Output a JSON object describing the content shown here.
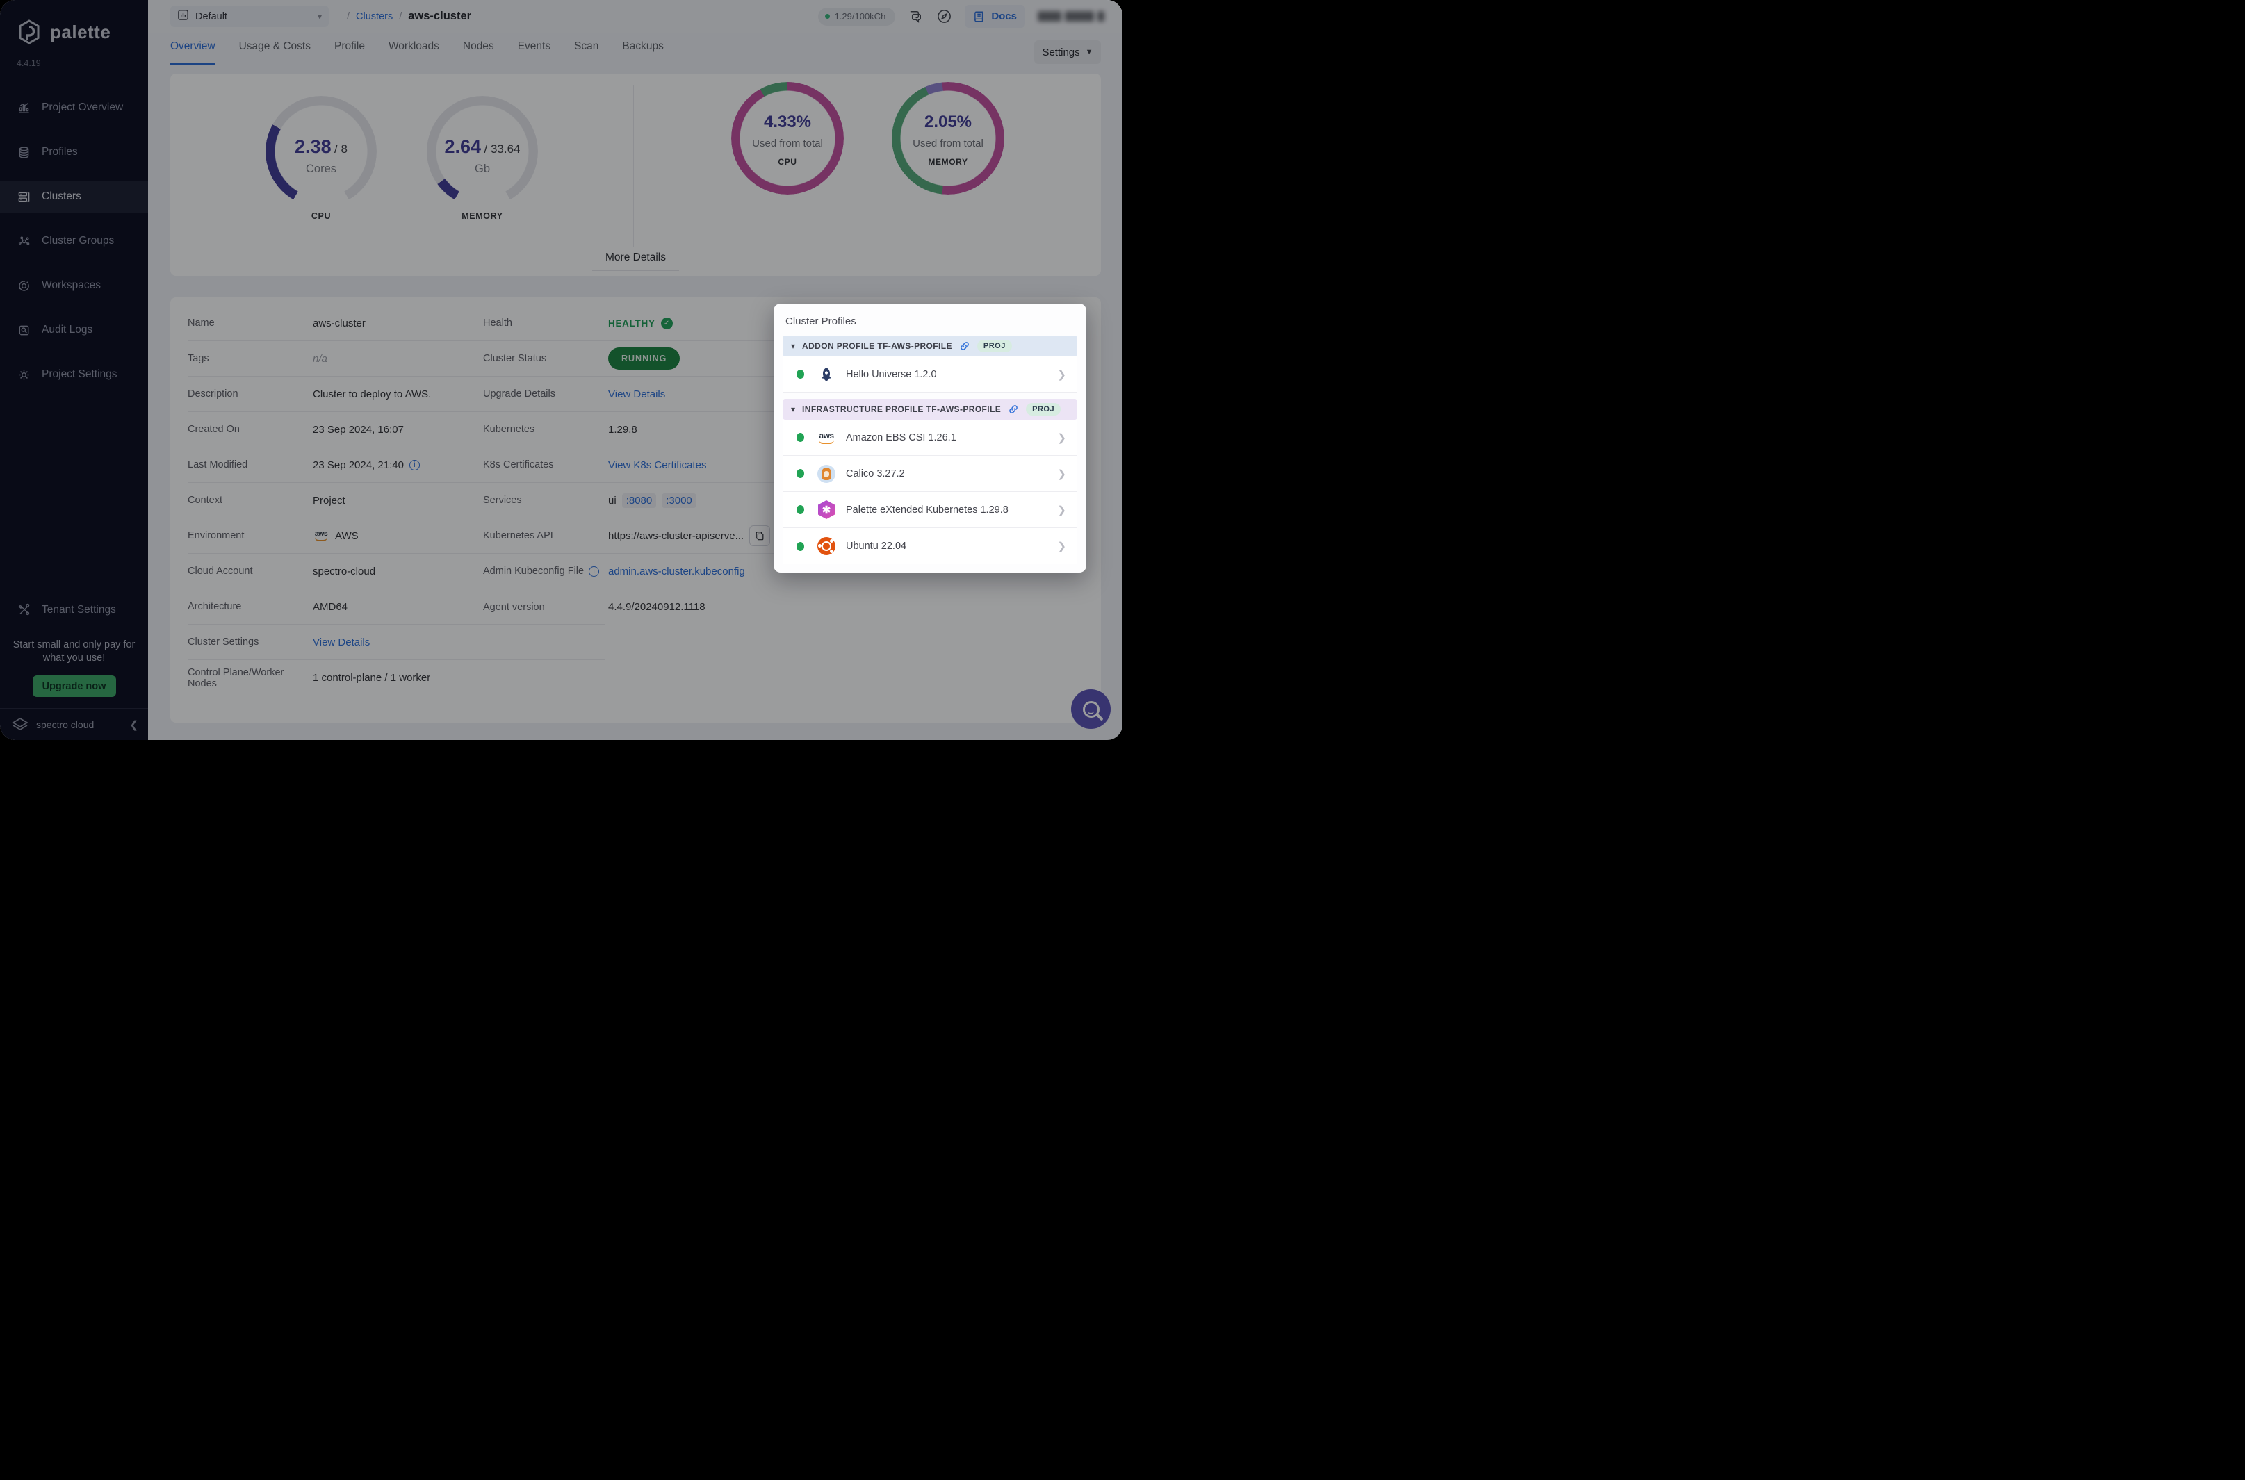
{
  "app": {
    "name": "palette",
    "version": "4.4.19"
  },
  "topbar": {
    "project_selector": {
      "label": "Default"
    },
    "breadcrumb": {
      "items": [
        "Clusters",
        "aws-cluster"
      ]
    },
    "usage_pill": "1.29/100kCh",
    "docs_label": "Docs"
  },
  "tabs": {
    "items": [
      "Overview",
      "Usage & Costs",
      "Profile",
      "Workloads",
      "Nodes",
      "Events",
      "Scan",
      "Backups"
    ],
    "active": "Overview"
  },
  "settings_button": "Settings",
  "sidebar": {
    "items": [
      {
        "label": "Project Overview",
        "icon": "chart-icon",
        "active": false
      },
      {
        "label": "Profiles",
        "icon": "layers-icon",
        "active": false
      },
      {
        "label": "Clusters",
        "icon": "clusters-icon",
        "active": true
      },
      {
        "label": "Cluster Groups",
        "icon": "cluster-groups-icon",
        "active": false
      },
      {
        "label": "Workspaces",
        "icon": "workspaces-icon",
        "active": false
      },
      {
        "label": "Audit Logs",
        "icon": "audit-logs-icon",
        "active": false
      },
      {
        "label": "Project Settings",
        "icon": "gear-icon",
        "active": false
      }
    ],
    "tenant_settings": {
      "label": "Tenant Settings",
      "icon": "tools-icon"
    },
    "promo": {
      "text": "Start small and only pay for what you use!",
      "button": "Upgrade now"
    },
    "footer": {
      "brand": "spectro cloud"
    }
  },
  "overview": {
    "gauges": [
      {
        "id": "cpu",
        "value": "2.38",
        "total": "8",
        "unit": "Cores",
        "label": "CPU",
        "fraction": 0.2975
      },
      {
        "id": "memory",
        "value": "2.64",
        "total": "33.64",
        "unit": "Gb",
        "label": "MEMORY",
        "fraction": 0.0785
      }
    ],
    "donuts": [
      {
        "id": "cpu",
        "percent": "4.33%",
        "caption": "Used from total",
        "label": "CPU",
        "segments": [
          {
            "color": "magenta",
            "from": 0,
            "to": 331
          },
          {
            "color": "green",
            "from": 331,
            "to": 360
          }
        ]
      },
      {
        "id": "memory",
        "percent": "2.05%",
        "caption": "Used from total",
        "label": "MEMORY",
        "segments": [
          {
            "color": "magenta",
            "from": 0,
            "to": 186
          },
          {
            "color": "green",
            "from": 186,
            "to": 336
          },
          {
            "color": "violet",
            "from": 336,
            "to": 354
          },
          {
            "color": "magenta",
            "from": 354,
            "to": 360
          }
        ]
      }
    ],
    "more_details": "More Details"
  },
  "chart_data": [
    {
      "type": "gauge",
      "title": "CPU",
      "used": 2.38,
      "total": 8,
      "unit": "Cores"
    },
    {
      "type": "gauge",
      "title": "MEMORY",
      "used": 2.64,
      "total": 33.64,
      "unit": "Gb"
    },
    {
      "type": "donut",
      "title": "CPU",
      "percent_used": 4.33,
      "caption": "Used from total"
    },
    {
      "type": "donut",
      "title": "MEMORY",
      "percent_used": 2.05,
      "caption": "Used from total"
    }
  ],
  "details": {
    "left": [
      {
        "label": "Name",
        "value": "aws-cluster",
        "type": "text"
      },
      {
        "label": "Tags",
        "value": "n/a",
        "type": "muted"
      },
      {
        "label": "Description",
        "value": "Cluster to deploy to AWS.",
        "type": "text"
      },
      {
        "label": "Created On",
        "value": "23 Sep 2024, 16:07",
        "type": "text"
      },
      {
        "label": "Last Modified",
        "value": "23 Sep 2024, 21:40",
        "type": "text-info"
      },
      {
        "label": "Context",
        "value": "Project",
        "type": "text"
      },
      {
        "label": "Environment",
        "value": "AWS",
        "type": "aws"
      },
      {
        "label": "Cloud Account",
        "value": "spectro-cloud",
        "type": "text"
      },
      {
        "label": "Architecture",
        "value": "AMD64",
        "type": "text"
      },
      {
        "label": "Cluster Settings",
        "value": "View Details",
        "type": "link"
      },
      {
        "label": "Control Plane/Worker Nodes",
        "value": "1 control-plane / 1 worker",
        "type": "text"
      }
    ],
    "right": [
      {
        "label": "Health",
        "value": "HEALTHY",
        "type": "health"
      },
      {
        "label": "Cluster Status",
        "value": "RUNNING",
        "type": "badge"
      },
      {
        "label": "Upgrade Details",
        "value": "View Details",
        "type": "link"
      },
      {
        "label": "Kubernetes",
        "value": "1.29.8",
        "type": "text"
      },
      {
        "label": "K8s Certificates",
        "value": "View K8s Certificates",
        "type": "link"
      },
      {
        "label": "Services",
        "value": "ui",
        "ports": [
          ":8080",
          ":3000"
        ],
        "type": "services"
      },
      {
        "label": "Kubernetes API",
        "value": "https://aws-cluster-apiserve...",
        "type": "copy"
      },
      {
        "label": "Admin Kubeconfig File",
        "value": "admin.aws-cluster.kubeconfig",
        "type": "link",
        "label_info": true
      },
      {
        "label": "Agent version",
        "value": "4.4.9/20240912.1118",
        "type": "text"
      }
    ]
  },
  "cluster_profiles": {
    "title": "Cluster Profiles",
    "sections": [
      {
        "header": "ADDON PROFILE TF-AWS-PROFILE",
        "badge": "PROJ",
        "theme": "blue",
        "items": [
          {
            "name": "Hello Universe 1.2.0",
            "icon": "hello-universe-icon"
          }
        ]
      },
      {
        "header": "INFRASTRUCTURE PROFILE TF-AWS-PROFILE",
        "badge": "PROJ",
        "theme": "purple",
        "items": [
          {
            "name": "Amazon EBS CSI 1.26.1",
            "icon": "aws-icon"
          },
          {
            "name": "Calico 3.27.2",
            "icon": "calico-icon"
          },
          {
            "name": "Palette eXtended Kubernetes 1.29.8",
            "icon": "pxk-icon"
          },
          {
            "name": "Ubuntu 22.04",
            "icon": "ubuntu-icon"
          }
        ]
      }
    ]
  },
  "colors": {
    "magenta": "#c2519e",
    "green": "#55a97a",
    "violet": "#8f82cf",
    "indigo": "#423c96",
    "track": "#e6e7ec",
    "accent_blue": "#2e6fd8",
    "status_green": "#1d8442"
  }
}
